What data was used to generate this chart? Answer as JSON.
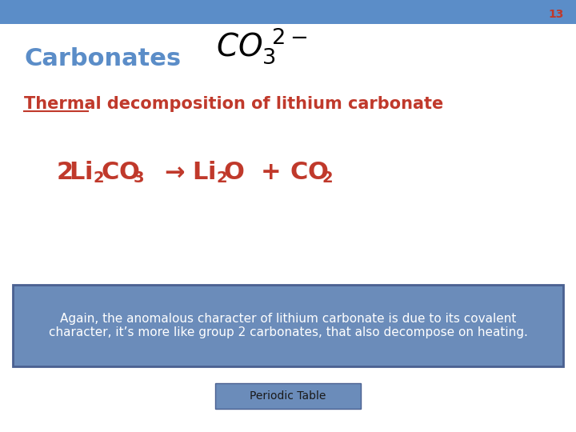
{
  "bg_color": "#ffffff",
  "header_color": "#5b8dc8",
  "slide_number": "13",
  "slide_number_color": "#c0392b",
  "carbonates_color": "#5b8dc8",
  "title_color": "#c0392b",
  "equation_color": "#c0392b",
  "info_box_facecolor": "#6b8cba",
  "info_box_edgecolor": "#4a6090",
  "info_text": "Again, the anomalous character of lithium carbonate is due to its covalent\ncharacter, it’s more like group 2 carbonates, that also decompose on heating.",
  "info_text_color": "#ffffff",
  "button_text": "Periodic Table",
  "button_facecolor": "#6b8cba",
  "button_edgecolor": "#4a6090",
  "button_text_color": "#1a1a1a"
}
